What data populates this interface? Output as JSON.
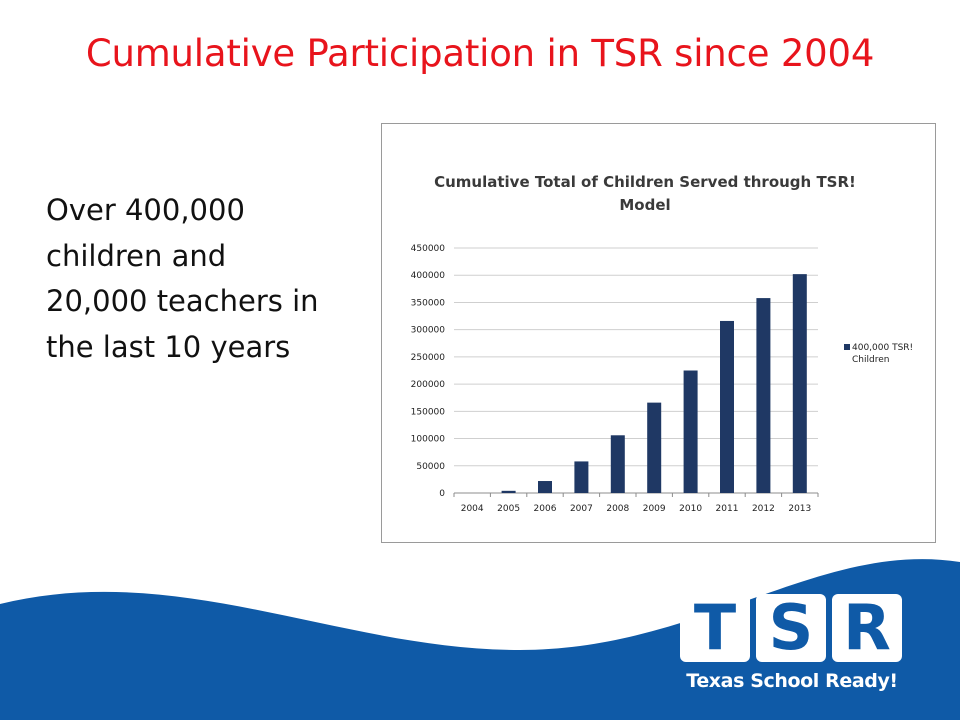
{
  "slide": {
    "title": "Cumulative Participation in TSR since 2004",
    "body_lines": [
      "Over 400,000",
      "children and",
      "20,000 teachers in",
      "the last 10 years"
    ]
  },
  "logo": {
    "letters": [
      "T",
      "S",
      "R"
    ],
    "tagline": "Texas School Ready!"
  },
  "colors": {
    "title": "#e8141c",
    "bar": "#1f3864",
    "band": "#0f5aa7"
  },
  "chart_data": {
    "type": "bar",
    "title_lines": [
      "Cumulative Total of Children Served through TSR!",
      "Model"
    ],
    "categories": [
      "2004",
      "2005",
      "2006",
      "2007",
      "2008",
      "2009",
      "2010",
      "2011",
      "2012",
      "2013"
    ],
    "series": [
      {
        "name": "400,000 TSR! Children",
        "values": [
          0,
          4000,
          22000,
          58000,
          106000,
          166000,
          225000,
          316000,
          358000,
          402000
        ]
      }
    ],
    "yticks": [
      "0",
      "50000",
      "100000",
      "150000",
      "200000",
      "250000",
      "300000",
      "350000",
      "400000",
      "450000"
    ],
    "ylim": [
      0,
      450000
    ],
    "grid": true,
    "legend_position": "right",
    "legend_lines": [
      "400,000 TSR!",
      "Children"
    ]
  }
}
